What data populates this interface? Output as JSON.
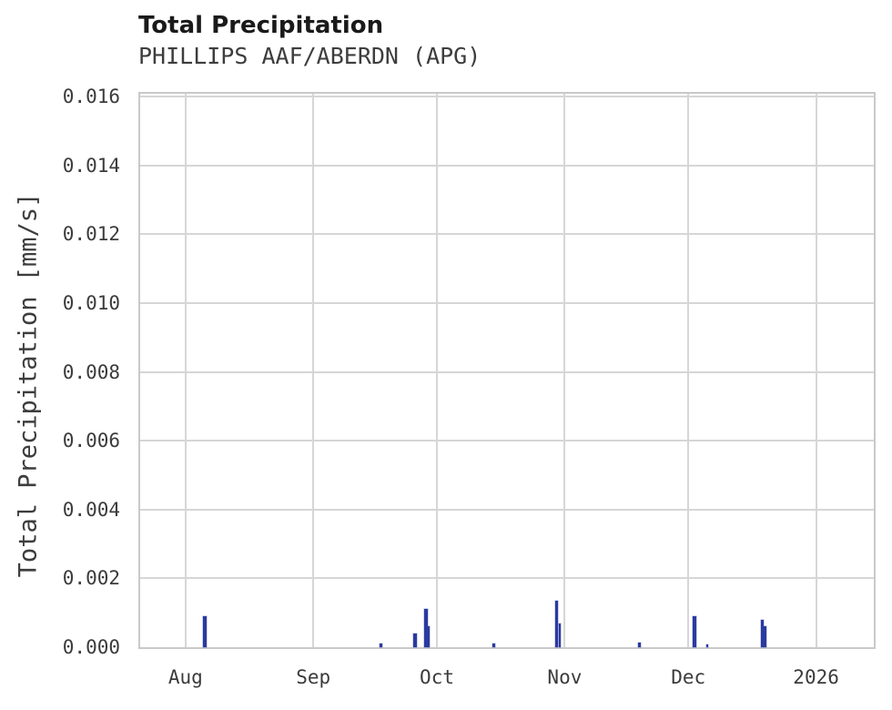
{
  "header": {
    "title": "Total Precipitation",
    "subtitle": "PHILLIPS AAF/ABERDN (APG)"
  },
  "colors": {
    "bar": "#2b3a9f",
    "grid": "#d6d6d6",
    "spine": "#c9c9c9",
    "title": "#1a1a1a",
    "subtitle": "#3d3d3d",
    "tick": "#3b3b3b",
    "background": "#ffffff"
  },
  "chart_data": {
    "type": "bar",
    "title": "Total Precipitation",
    "subtitle": "PHILLIPS AAF/ABERDN (APG)",
    "xlabel": "",
    "ylabel": "Total Precipitation [mm/s]",
    "ylim": [
      0,
      0.01608
    ],
    "yticks": [
      0,
      0.002,
      0.004,
      0.006,
      0.008,
      0.01,
      0.012,
      0.014,
      0.016
    ],
    "ytick_labels": [
      "0.000",
      "0.002",
      "0.004",
      "0.006",
      "0.008",
      "0.010",
      "0.012",
      "0.014",
      "0.016"
    ],
    "grid": true,
    "legend": "none",
    "x_range_days": 178,
    "xticks": [
      {
        "label": "Aug",
        "day": 11
      },
      {
        "label": "Sep",
        "day": 42
      },
      {
        "label": "Oct",
        "day": 72
      },
      {
        "label": "Nov",
        "day": 103
      },
      {
        "label": "Dec",
        "day": 133
      },
      {
        "label": "2026",
        "day": 164
      }
    ],
    "spikes": [
      {
        "date_est": "Aug 5",
        "day": 15.6,
        "value": 0.0009,
        "w": 4
      },
      {
        "date_est": "Sep 17",
        "day": 58.4,
        "value": 0.0001,
        "w": 3
      },
      {
        "date_est": "Sep 25",
        "day": 66.7,
        "value": 0.0004,
        "w": 4
      },
      {
        "date_est": "Sep 28",
        "day": 69.3,
        "value": 0.0011,
        "w": 4
      },
      {
        "date_est": "Sep 28",
        "day": 70.0,
        "value": 0.0006,
        "w": 2
      },
      {
        "date_est": "Oct 14",
        "day": 85.7,
        "value": 0.0001,
        "w": 3
      },
      {
        "date_est": "Oct 29",
        "day": 101.0,
        "value": 0.00134,
        "w": 3
      },
      {
        "date_est": "Oct 30",
        "day": 101.7,
        "value": 0.0007,
        "w": 2
      },
      {
        "date_est": "Nov 19",
        "day": 121.1,
        "value": 0.00012,
        "w": 3
      },
      {
        "date_est": "Dec 3",
        "day": 134.4,
        "value": 0.0009,
        "w": 4
      },
      {
        "date_est": "Dec 5",
        "day": 137.6,
        "value": 7e-05,
        "w": 2
      },
      {
        "date_est": "Dec 19",
        "day": 151.0,
        "value": 0.0008,
        "w": 3
      },
      {
        "date_est": "Dec 19",
        "day": 151.7,
        "value": 0.0006,
        "w": 3
      }
    ]
  }
}
